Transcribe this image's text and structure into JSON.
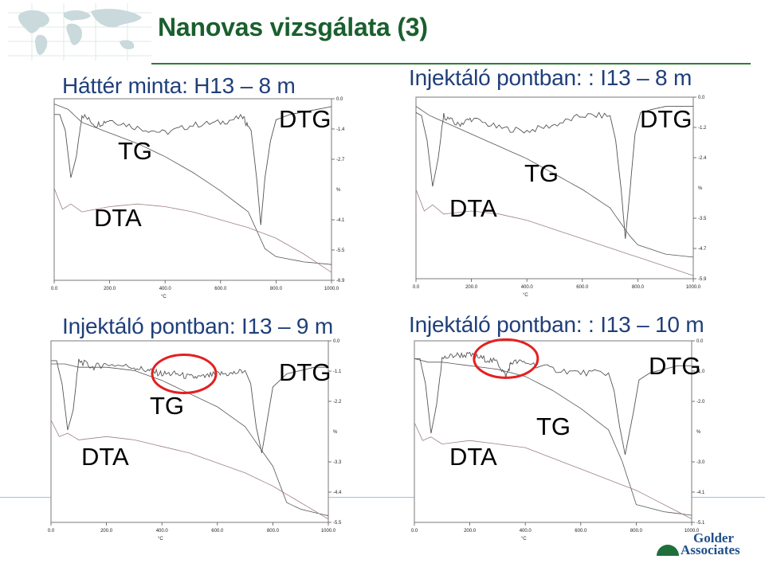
{
  "slide": {
    "title": "Nanovas vizsgálata (3)",
    "logo": "golder-associates-logo",
    "logo_text_1": "Golder",
    "logo_text_2": "Associates",
    "colors": {
      "title": "#1a5f2e",
      "rule": "#2e7d32",
      "subtitle": "#1f3f7a",
      "highlight": "#e32020",
      "curve": "#555555"
    }
  },
  "chart_data": [
    {
      "type": "line",
      "title": "Háttér minta: H13 – 8 m",
      "labels": {
        "dtg": "DTG",
        "tg": "TG",
        "dta": "DTA"
      },
      "xticks": [
        "0.0",
        "200.0",
        "400.0",
        "600.0",
        "800.0",
        "1000.0"
      ],
      "xunit": "°C",
      "xlim": [
        0,
        1000
      ],
      "right_ticks": [
        "0.0",
        "-1.4",
        "-2.7",
        "%",
        "-4.1",
        "-5.5",
        "-6.9"
      ],
      "ylim": [
        -6.9,
        0
      ],
      "highlight": null,
      "series": [
        {
          "name": "DTG",
          "x": [
            0,
            20,
            40,
            60,
            80,
            100,
            150,
            200,
            300,
            400,
            500,
            600,
            680,
            710,
            730,
            745,
            760,
            780,
            800,
            850,
            900,
            950,
            1000
          ],
          "y": [
            -0.6,
            -0.6,
            -1.2,
            -3.0,
            -2.2,
            -0.6,
            -1.0,
            -0.8,
            -1.1,
            -1.3,
            -1.0,
            -0.9,
            -0.7,
            -1.2,
            -3.0,
            -4.8,
            -3.0,
            -1.6,
            -0.8,
            -0.6,
            -0.5,
            -0.4,
            -0.3
          ]
        },
        {
          "name": "TG",
          "x": [
            0,
            50,
            100,
            200,
            300,
            400,
            500,
            600,
            700,
            760,
            800,
            900,
            1000
          ],
          "y": [
            -0.2,
            -0.4,
            -0.9,
            -1.3,
            -1.7,
            -2.2,
            -2.8,
            -3.5,
            -4.3,
            -5.7,
            -6.0,
            -6.2,
            -6.3
          ]
        },
        {
          "name": "DTA",
          "x": [
            0,
            30,
            60,
            100,
            200,
            300,
            400,
            500,
            600,
            700,
            800,
            900,
            1000
          ],
          "y": [
            -3.4,
            -4.2,
            -4.0,
            -4.3,
            -4.1,
            -4.0,
            -4.1,
            -4.3,
            -4.6,
            -4.9,
            -5.3,
            -5.9,
            -6.6
          ]
        }
      ]
    },
    {
      "type": "line",
      "title": "Injektáló pontban: : I13 – 8 m",
      "labels": {
        "dtg": "DTG",
        "tg": "TG",
        "dta": "DTA"
      },
      "xticks": [
        "0.0",
        "200.0",
        "400.0",
        "600.0",
        "800.0",
        "1000.0"
      ],
      "xunit": "°C",
      "xlim": [
        0,
        1000
      ],
      "right_ticks": [
        "0.0",
        "-1.2",
        "-2.4",
        "%",
        "-3.5",
        "-4.7",
        "-5.9"
      ],
      "ylim": [
        -5.9,
        0
      ],
      "highlight": null,
      "series": [
        {
          "name": "DTG",
          "x": [
            0,
            20,
            40,
            60,
            80,
            100,
            150,
            200,
            300,
            400,
            500,
            600,
            700,
            720,
            740,
            755,
            770,
            790,
            810,
            850,
            900,
            950,
            1000
          ],
          "y": [
            -0.5,
            -0.6,
            -1.4,
            -2.9,
            -2.0,
            -0.6,
            -0.9,
            -0.7,
            -1.0,
            -1.1,
            -0.9,
            -0.6,
            -0.6,
            -1.4,
            -3.0,
            -4.6,
            -3.2,
            -1.2,
            -0.5,
            -0.4,
            -0.3,
            -0.3,
            -0.3
          ]
        },
        {
          "name": "TG",
          "x": [
            0,
            50,
            100,
            200,
            300,
            400,
            500,
            600,
            700,
            770,
            800,
            900,
            1000
          ],
          "y": [
            -0.3,
            -0.6,
            -0.8,
            -1.2,
            -1.6,
            -2.0,
            -2.5,
            -3.0,
            -3.6,
            -4.5,
            -4.8,
            -5.1,
            -5.2
          ]
        },
        {
          "name": "DTA",
          "x": [
            0,
            30,
            60,
            100,
            200,
            300,
            400,
            500,
            600,
            700,
            800,
            900,
            1000
          ],
          "y": [
            -3.0,
            -3.7,
            -3.5,
            -3.8,
            -3.7,
            -3.8,
            -4.0,
            -4.3,
            -4.6,
            -4.9,
            -5.2,
            -5.5,
            -5.8
          ]
        }
      ]
    },
    {
      "type": "line",
      "title": "Injektáló pontban: I13 – 9 m",
      "labels": {
        "dtg": "DTG",
        "tg": "TG",
        "dta": "DTA"
      },
      "xticks": [
        "0.0",
        "200.0",
        "400.0",
        "600.0",
        "800.0",
        "1000.0"
      ],
      "xunit": "°C",
      "xlim": [
        0,
        1000
      ],
      "right_ticks": [
        "0.0",
        "-1.1",
        "-2.2",
        "%",
        "-3.3",
        "-4.4",
        "-5.5"
      ],
      "ylim": [
        -5.5,
        0
      ],
      "highlight": {
        "cx": 480,
        "cy": -1.0
      },
      "series": [
        {
          "name": "DTG",
          "x": [
            0,
            20,
            40,
            60,
            80,
            100,
            150,
            200,
            300,
            350,
            400,
            450,
            500,
            550,
            600,
            650,
            700,
            720,
            740,
            760,
            780,
            800,
            850,
            900,
            950,
            1000
          ],
          "y": [
            -0.6,
            -0.6,
            -1.3,
            -2.7,
            -2.1,
            -0.6,
            -0.8,
            -0.7,
            -0.8,
            -0.9,
            -1.0,
            -1.0,
            -1.1,
            -1.1,
            -1.0,
            -1.0,
            -0.9,
            -1.3,
            -2.6,
            -3.4,
            -2.4,
            -1.4,
            -1.0,
            -0.9,
            -0.8,
            -0.8
          ]
        },
        {
          "name": "TG",
          "x": [
            0,
            50,
            100,
            200,
            300,
            400,
            500,
            600,
            700,
            800,
            850,
            900,
            1000
          ],
          "y": [
            -0.7,
            -0.7,
            -0.8,
            -0.8,
            -0.9,
            -1.2,
            -1.6,
            -2.0,
            -2.6,
            -3.8,
            -4.9,
            -5.1,
            -5.3
          ]
        },
        {
          "name": "DTA",
          "x": [
            0,
            30,
            60,
            100,
            200,
            300,
            400,
            500,
            600,
            700,
            800,
            900,
            1000
          ],
          "y": [
            -2.4,
            -2.9,
            -2.8,
            -3.0,
            -2.9,
            -3.0,
            -3.2,
            -3.4,
            -3.7,
            -4.0,
            -4.4,
            -4.9,
            -5.4
          ]
        }
      ]
    },
    {
      "type": "line",
      "title": "Injektáló pontban: : I13 – 10 m",
      "labels": {
        "dtg": "DTG",
        "tg": "TG",
        "dta": "DTA"
      },
      "xticks": [
        "0.0",
        "200.0",
        "400.0",
        "600.0",
        "800.0",
        "1000.0"
      ],
      "xunit": "°C",
      "xlim": [
        0,
        1000
      ],
      "right_ticks": [
        "0.0",
        "-1.0",
        "-2.0",
        "%",
        "-3.0",
        "-4.1",
        "-5.1"
      ],
      "ylim": [
        -5.1,
        0
      ],
      "highlight": {
        "cx": 330,
        "cy": -0.5
      },
      "series": [
        {
          "name": "DTG",
          "x": [
            0,
            20,
            40,
            60,
            80,
            100,
            150,
            200,
            250,
            300,
            330,
            350,
            400,
            500,
            600,
            700,
            720,
            740,
            760,
            790,
            810,
            850,
            900,
            950,
            1000
          ],
          "y": [
            -0.5,
            -0.5,
            -1.2,
            -2.6,
            -1.8,
            -0.5,
            -0.4,
            -0.4,
            -0.5,
            -0.6,
            -1.0,
            -0.6,
            -0.6,
            -0.8,
            -0.9,
            -0.9,
            -1.4,
            -2.4,
            -3.2,
            -2.0,
            -1.1,
            -0.9,
            -0.8,
            -0.7,
            -0.7
          ]
        },
        {
          "name": "TG",
          "x": [
            0,
            50,
            100,
            200,
            300,
            400,
            500,
            600,
            700,
            750,
            800,
            900,
            1000
          ],
          "y": [
            -0.5,
            -0.6,
            -0.6,
            -0.7,
            -0.8,
            -1.0,
            -1.4,
            -1.9,
            -2.5,
            -3.4,
            -4.6,
            -4.8,
            -4.9
          ]
        },
        {
          "name": "DTA",
          "x": [
            0,
            30,
            60,
            100,
            200,
            300,
            400,
            500,
            600,
            700,
            800,
            900,
            1000
          ],
          "y": [
            -2.3,
            -2.8,
            -2.7,
            -2.9,
            -2.8,
            -2.9,
            -3.0,
            -3.3,
            -3.6,
            -3.9,
            -4.2,
            -4.6,
            -5.0
          ]
        }
      ]
    }
  ]
}
